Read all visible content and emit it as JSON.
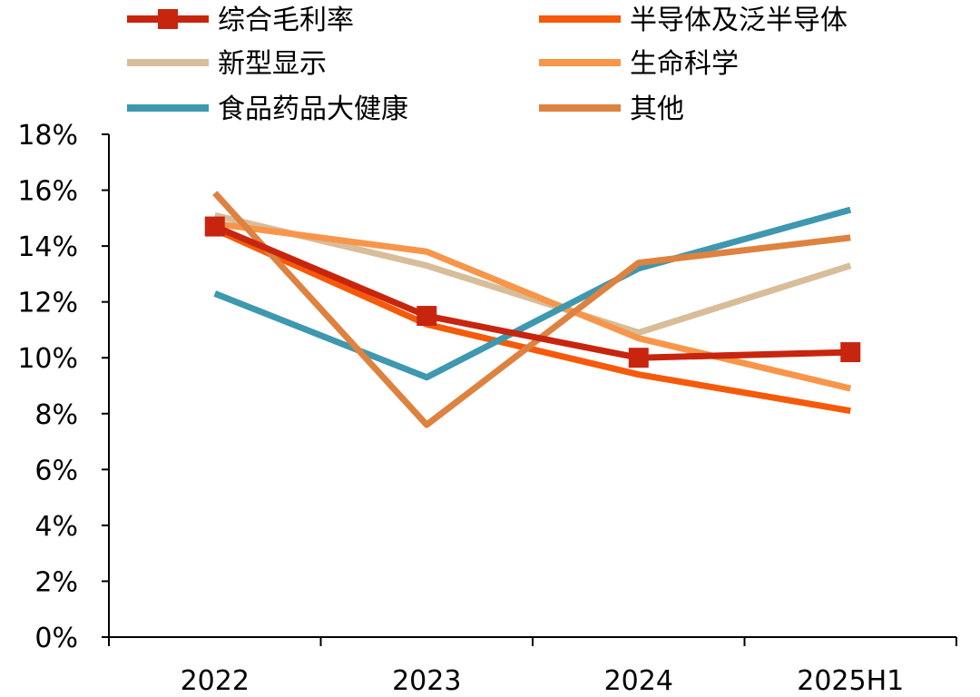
{
  "chart_data": {
    "type": "line",
    "categories": [
      "2022",
      "2023",
      "2024",
      "2025H1"
    ],
    "series": [
      {
        "name": "综合毛利率",
        "values": [
          14.7,
          11.5,
          10.0,
          10.2
        ],
        "color": "#c8250f",
        "marker": "square"
      },
      {
        "name": "半导体及泛半导体",
        "values": [
          14.6,
          11.2,
          9.4,
          8.1
        ],
        "color": "#f55a0a",
        "marker": "none"
      },
      {
        "name": "新型显示",
        "values": [
          15.1,
          13.3,
          10.9,
          13.3
        ],
        "color": "#d8bd9a",
        "marker": "none"
      },
      {
        "name": "生命科学",
        "values": [
          14.8,
          13.8,
          10.7,
          8.9
        ],
        "color": "#f7964a",
        "marker": "none"
      },
      {
        "name": "食品药品大健康",
        "values": [
          12.3,
          9.3,
          13.2,
          15.3
        ],
        "color": "#3d98b0",
        "marker": "none"
      },
      {
        "name": "其他",
        "values": [
          15.9,
          7.6,
          13.4,
          14.3
        ],
        "color": "#de8240",
        "marker": "none"
      }
    ],
    "ylim": [
      0,
      18
    ],
    "y_ticks": [
      "0%",
      "2%",
      "4%",
      "6%",
      "8%",
      "10%",
      "12%",
      "14%",
      "16%",
      "18%"
    ],
    "y_tick_values": [
      0,
      2,
      4,
      6,
      8,
      10,
      12,
      14,
      16,
      18
    ],
    "grid": false,
    "legend_placement": "top"
  }
}
